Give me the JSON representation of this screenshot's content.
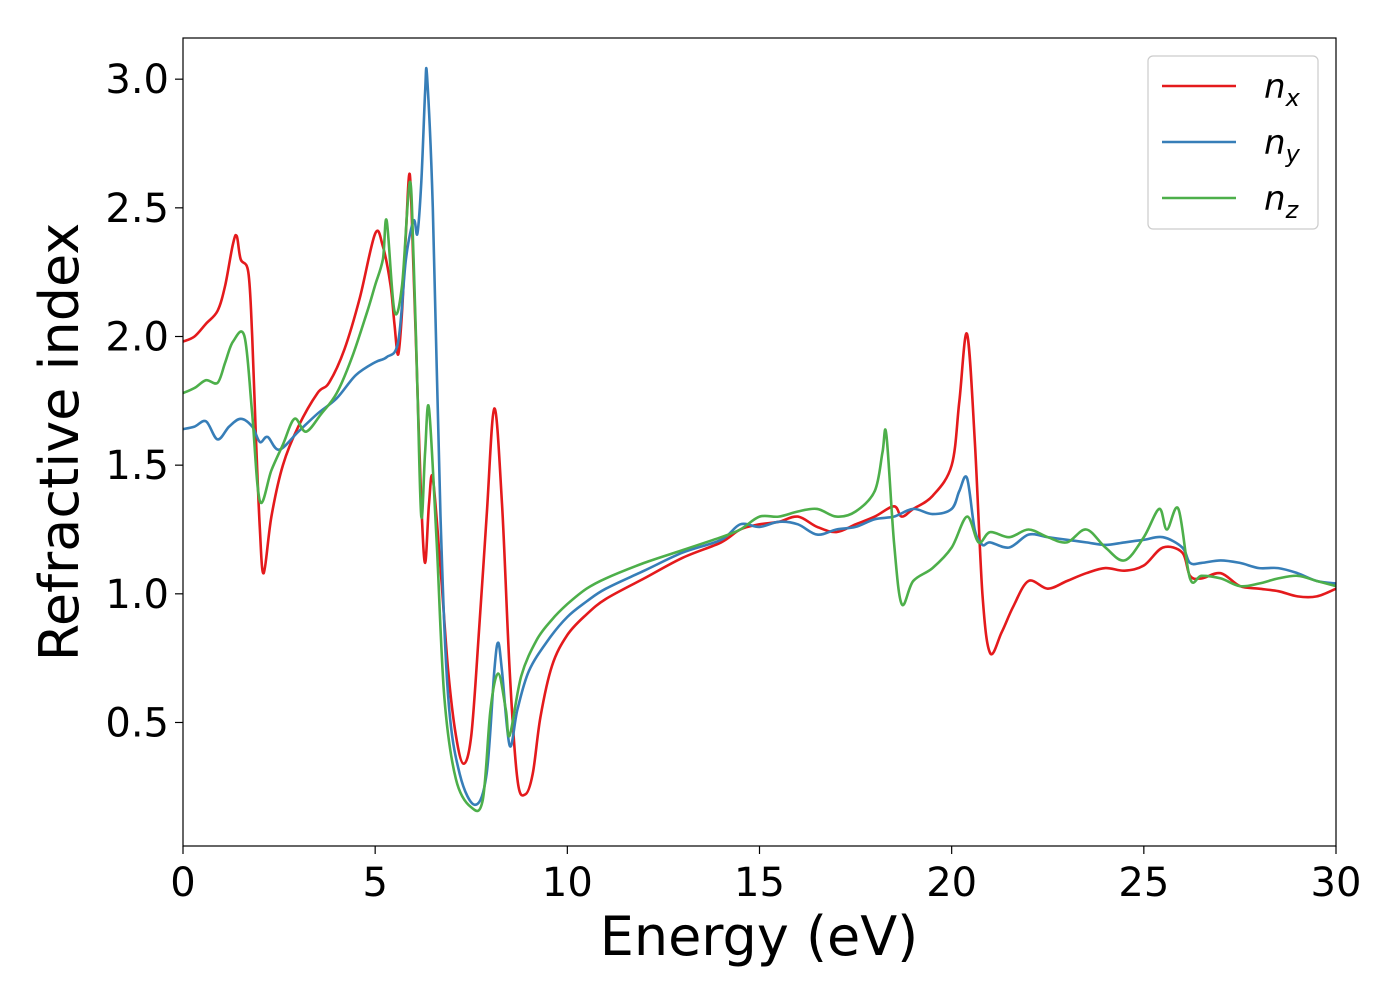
{
  "chart_data": {
    "type": "line",
    "xlabel": "Energy (eV)",
    "ylabel": "Refractive index",
    "xlim": [
      0,
      30
    ],
    "ylim": [
      0.02,
      3.16
    ],
    "xticks": [
      0,
      5,
      10,
      15,
      20,
      25,
      30
    ],
    "xtick_labels": [
      "0",
      "5",
      "10",
      "15",
      "20",
      "25",
      "30"
    ],
    "yticks": [
      0.5,
      1.0,
      1.5,
      2.0,
      2.5,
      3.0
    ],
    "ytick_labels": [
      "0.5",
      "1.0",
      "1.5",
      "2.0",
      "2.5",
      "3.0"
    ],
    "grid": false,
    "legend": {
      "position": "top-right"
    },
    "series": [
      {
        "name": "n_x",
        "label_base": "n",
        "label_sub": "x",
        "color": "#e41a1c",
        "points": [
          [
            0,
            1.98
          ],
          [
            0.3,
            2.0
          ],
          [
            0.6,
            2.05
          ],
          [
            0.9,
            2.1
          ],
          [
            1.1,
            2.2
          ],
          [
            1.3,
            2.36
          ],
          [
            1.4,
            2.39
          ],
          [
            1.5,
            2.3
          ],
          [
            1.7,
            2.25
          ],
          [
            1.8,
            2.0
          ],
          [
            1.9,
            1.6
          ],
          [
            2.0,
            1.25
          ],
          [
            2.1,
            1.08
          ],
          [
            2.3,
            1.3
          ],
          [
            2.6,
            1.5
          ],
          [
            3.0,
            1.65
          ],
          [
            3.5,
            1.78
          ],
          [
            3.8,
            1.82
          ],
          [
            4.2,
            1.95
          ],
          [
            4.6,
            2.15
          ],
          [
            5.0,
            2.4
          ],
          [
            5.2,
            2.35
          ],
          [
            5.4,
            2.2
          ],
          [
            5.5,
            2.05
          ],
          [
            5.6,
            1.93
          ],
          [
            5.7,
            2.1
          ],
          [
            5.8,
            2.4
          ],
          [
            5.9,
            2.63
          ],
          [
            6.0,
            2.25
          ],
          [
            6.1,
            1.8
          ],
          [
            6.2,
            1.35
          ],
          [
            6.3,
            1.12
          ],
          [
            6.4,
            1.35
          ],
          [
            6.5,
            1.45
          ],
          [
            6.7,
            1.1
          ],
          [
            6.9,
            0.7
          ],
          [
            7.1,
            0.45
          ],
          [
            7.3,
            0.34
          ],
          [
            7.5,
            0.45
          ],
          [
            7.7,
            0.85
          ],
          [
            7.9,
            1.3
          ],
          [
            8.1,
            1.72
          ],
          [
            8.3,
            1.35
          ],
          [
            8.5,
            0.7
          ],
          [
            8.7,
            0.28
          ],
          [
            8.9,
            0.22
          ],
          [
            9.1,
            0.3
          ],
          [
            9.3,
            0.52
          ],
          [
            9.6,
            0.72
          ],
          [
            10.0,
            0.84
          ],
          [
            10.5,
            0.92
          ],
          [
            11.0,
            0.98
          ],
          [
            12.0,
            1.06
          ],
          [
            13.0,
            1.14
          ],
          [
            14.0,
            1.2
          ],
          [
            14.5,
            1.25
          ],
          [
            15.0,
            1.27
          ],
          [
            15.5,
            1.28
          ],
          [
            16.0,
            1.3
          ],
          [
            16.5,
            1.26
          ],
          [
            17.0,
            1.24
          ],
          [
            17.5,
            1.27
          ],
          [
            18.0,
            1.3
          ],
          [
            18.5,
            1.34
          ],
          [
            18.7,
            1.3
          ],
          [
            19.0,
            1.33
          ],
          [
            19.5,
            1.38
          ],
          [
            20.0,
            1.5
          ],
          [
            20.2,
            1.75
          ],
          [
            20.4,
            2.01
          ],
          [
            20.6,
            1.6
          ],
          [
            20.8,
            1.0
          ],
          [
            21.0,
            0.77
          ],
          [
            21.3,
            0.85
          ],
          [
            21.6,
            0.95
          ],
          [
            22.0,
            1.05
          ],
          [
            22.5,
            1.02
          ],
          [
            23.0,
            1.05
          ],
          [
            23.5,
            1.08
          ],
          [
            24.0,
            1.1
          ],
          [
            24.5,
            1.09
          ],
          [
            25.0,
            1.11
          ],
          [
            25.5,
            1.18
          ],
          [
            26.0,
            1.16
          ],
          [
            26.2,
            1.07
          ],
          [
            26.5,
            1.06
          ],
          [
            27.0,
            1.08
          ],
          [
            27.5,
            1.03
          ],
          [
            28.0,
            1.02
          ],
          [
            28.5,
            1.01
          ],
          [
            29.0,
            0.99
          ],
          [
            29.5,
            0.99
          ],
          [
            30.0,
            1.02
          ]
        ]
      },
      {
        "name": "n_y",
        "label_base": "n",
        "label_sub": "y",
        "color": "#377eb8",
        "points": [
          [
            0,
            1.64
          ],
          [
            0.3,
            1.65
          ],
          [
            0.6,
            1.67
          ],
          [
            0.9,
            1.6
          ],
          [
            1.2,
            1.65
          ],
          [
            1.5,
            1.68
          ],
          [
            1.8,
            1.65
          ],
          [
            2.0,
            1.59
          ],
          [
            2.2,
            1.61
          ],
          [
            2.5,
            1.56
          ],
          [
            3.0,
            1.63
          ],
          [
            3.5,
            1.7
          ],
          [
            4.0,
            1.76
          ],
          [
            4.5,
            1.85
          ],
          [
            5.0,
            1.9
          ],
          [
            5.3,
            1.92
          ],
          [
            5.6,
            1.98
          ],
          [
            5.8,
            2.3
          ],
          [
            6.0,
            2.45
          ],
          [
            6.1,
            2.4
          ],
          [
            6.2,
            2.6
          ],
          [
            6.3,
            2.95
          ],
          [
            6.35,
            3.01
          ],
          [
            6.5,
            2.5
          ],
          [
            6.7,
            1.3
          ],
          [
            6.9,
            0.6
          ],
          [
            7.2,
            0.3
          ],
          [
            7.6,
            0.18
          ],
          [
            7.9,
            0.3
          ],
          [
            8.1,
            0.7
          ],
          [
            8.2,
            0.81
          ],
          [
            8.3,
            0.7
          ],
          [
            8.5,
            0.41
          ],
          [
            8.7,
            0.55
          ],
          [
            9.0,
            0.7
          ],
          [
            9.5,
            0.82
          ],
          [
            10.0,
            0.91
          ],
          [
            10.5,
            0.97
          ],
          [
            11.0,
            1.02
          ],
          [
            12.0,
            1.09
          ],
          [
            13.0,
            1.16
          ],
          [
            14.0,
            1.21
          ],
          [
            14.5,
            1.27
          ],
          [
            15.0,
            1.26
          ],
          [
            15.5,
            1.28
          ],
          [
            16.0,
            1.27
          ],
          [
            16.5,
            1.23
          ],
          [
            17.0,
            1.25
          ],
          [
            17.5,
            1.26
          ],
          [
            18.0,
            1.29
          ],
          [
            18.5,
            1.3
          ],
          [
            19.0,
            1.33
          ],
          [
            19.5,
            1.31
          ],
          [
            20.0,
            1.33
          ],
          [
            20.2,
            1.4
          ],
          [
            20.4,
            1.45
          ],
          [
            20.6,
            1.25
          ],
          [
            20.8,
            1.19
          ],
          [
            21.0,
            1.2
          ],
          [
            21.5,
            1.18
          ],
          [
            22.0,
            1.23
          ],
          [
            22.5,
            1.22
          ],
          [
            23.0,
            1.21
          ],
          [
            23.5,
            1.2
          ],
          [
            24.0,
            1.19
          ],
          [
            24.5,
            1.2
          ],
          [
            25.0,
            1.21
          ],
          [
            25.5,
            1.22
          ],
          [
            26.0,
            1.18
          ],
          [
            26.2,
            1.12
          ],
          [
            26.5,
            1.12
          ],
          [
            27.0,
            1.13
          ],
          [
            27.5,
            1.12
          ],
          [
            28.0,
            1.1
          ],
          [
            28.5,
            1.1
          ],
          [
            29.0,
            1.08
          ],
          [
            29.5,
            1.05
          ],
          [
            30.0,
            1.04
          ]
        ]
      },
      {
        "name": "n_z",
        "label_base": "n",
        "label_sub": "z",
        "color": "#4daf4a",
        "points": [
          [
            0,
            1.78
          ],
          [
            0.3,
            1.8
          ],
          [
            0.6,
            1.83
          ],
          [
            0.9,
            1.82
          ],
          [
            1.1,
            1.9
          ],
          [
            1.3,
            1.98
          ],
          [
            1.6,
            2.0
          ],
          [
            1.8,
            1.7
          ],
          [
            2.0,
            1.36
          ],
          [
            2.3,
            1.48
          ],
          [
            2.6,
            1.58
          ],
          [
            2.9,
            1.68
          ],
          [
            3.2,
            1.63
          ],
          [
            3.6,
            1.7
          ],
          [
            4.0,
            1.78
          ],
          [
            4.4,
            1.92
          ],
          [
            4.8,
            2.1
          ],
          [
            5.0,
            2.2
          ],
          [
            5.2,
            2.3
          ],
          [
            5.3,
            2.45
          ],
          [
            5.5,
            2.1
          ],
          [
            5.7,
            2.2
          ],
          [
            5.9,
            2.6
          ],
          [
            6.0,
            2.3
          ],
          [
            6.1,
            1.8
          ],
          [
            6.2,
            1.3
          ],
          [
            6.3,
            1.55
          ],
          [
            6.4,
            1.72
          ],
          [
            6.6,
            1.2
          ],
          [
            6.8,
            0.6
          ],
          [
            7.1,
            0.28
          ],
          [
            7.5,
            0.17
          ],
          [
            7.8,
            0.2
          ],
          [
            8.0,
            0.55
          ],
          [
            8.2,
            0.69
          ],
          [
            8.4,
            0.55
          ],
          [
            8.5,
            0.45
          ],
          [
            8.8,
            0.68
          ],
          [
            9.2,
            0.82
          ],
          [
            9.6,
            0.9
          ],
          [
            10.0,
            0.96
          ],
          [
            10.5,
            1.02
          ],
          [
            11.0,
            1.06
          ],
          [
            12.0,
            1.12
          ],
          [
            13.0,
            1.17
          ],
          [
            14.0,
            1.22
          ],
          [
            14.5,
            1.25
          ],
          [
            15.0,
            1.3
          ],
          [
            15.5,
            1.3
          ],
          [
            16.0,
            1.32
          ],
          [
            16.5,
            1.33
          ],
          [
            17.0,
            1.3
          ],
          [
            17.5,
            1.32
          ],
          [
            18.0,
            1.4
          ],
          [
            18.2,
            1.55
          ],
          [
            18.3,
            1.62
          ],
          [
            18.5,
            1.2
          ],
          [
            18.7,
            0.96
          ],
          [
            19.0,
            1.05
          ],
          [
            19.5,
            1.1
          ],
          [
            20.0,
            1.18
          ],
          [
            20.4,
            1.3
          ],
          [
            20.7,
            1.2
          ],
          [
            21.0,
            1.24
          ],
          [
            21.5,
            1.22
          ],
          [
            22.0,
            1.25
          ],
          [
            22.5,
            1.22
          ],
          [
            23.0,
            1.2
          ],
          [
            23.5,
            1.25
          ],
          [
            24.0,
            1.18
          ],
          [
            24.5,
            1.13
          ],
          [
            25.0,
            1.22
          ],
          [
            25.4,
            1.33
          ],
          [
            25.6,
            1.25
          ],
          [
            25.9,
            1.33
          ],
          [
            26.2,
            1.06
          ],
          [
            26.5,
            1.07
          ],
          [
            27.0,
            1.06
          ],
          [
            27.5,
            1.03
          ],
          [
            28.0,
            1.04
          ],
          [
            28.5,
            1.06
          ],
          [
            29.0,
            1.07
          ],
          [
            29.5,
            1.05
          ],
          [
            30.0,
            1.03
          ]
        ]
      }
    ]
  }
}
